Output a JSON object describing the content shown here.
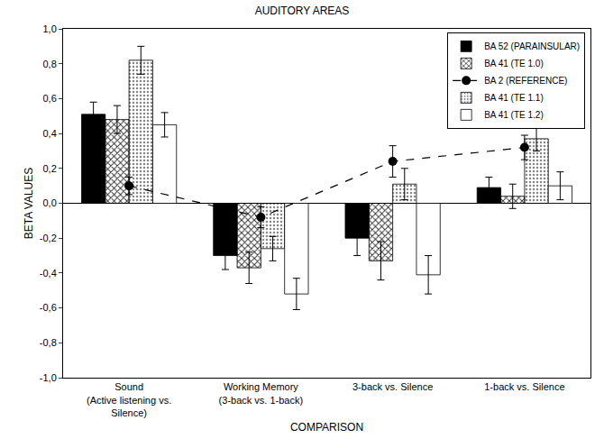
{
  "chart_data": {
    "type": "bar",
    "title": "AUDITORY AREAS",
    "x_label": "COMPARISON",
    "y_label": "BETA VALUES",
    "categories": [
      "Sound\n(Active listening vs.\nSilence)",
      "Working Memory\n(3-back vs. 1-back)",
      "3-back vs. Silence",
      "1-back vs. Silence"
    ],
    "series": [
      {
        "name": "BA 52 (PARAINSULAR)",
        "type": "bar",
        "color": "#000000",
        "marker": "solid",
        "values": [
          0.51,
          -0.3,
          -0.2,
          0.09
        ],
        "errors": [
          0.07,
          0.08,
          0.1,
          0.06
        ]
      },
      {
        "name": "BA 41 (TE 1.0)",
        "type": "bar",
        "color": "#8c8c8c",
        "marker": "hatched",
        "values": [
          0.48,
          -0.37,
          -0.33,
          0.04
        ],
        "errors": [
          0.08,
          0.09,
          0.11,
          0.07
        ]
      },
      {
        "name": "BA 2 (REFERENCE)",
        "type": "line",
        "color": "#000000",
        "marker": "circle",
        "line_style": "dash",
        "values": [
          0.1,
          -0.08,
          0.24,
          0.32
        ],
        "errors": [
          0.05,
          0.06,
          0.09,
          0.07
        ]
      },
      {
        "name": "BA 41 (TE 1.1)",
        "type": "bar",
        "color": "#d4d4d4",
        "marker": "dotted",
        "values": [
          0.82,
          -0.26,
          0.11,
          0.37
        ],
        "errors": [
          0.08,
          0.07,
          0.09,
          0.07
        ]
      },
      {
        "name": "BA 41 (TE 1.2)",
        "type": "bar",
        "color": "#ffffff",
        "marker": "solid",
        "values": [
          0.45,
          -0.52,
          -0.41,
          0.1
        ],
        "errors": [
          0.07,
          0.09,
          0.11,
          0.08
        ]
      }
    ],
    "ylim": [
      -1,
      1
    ],
    "yticks": [
      {
        "value": -1,
        "label": "-1,0"
      },
      {
        "value": -0.8,
        "label": "-0,8"
      },
      {
        "value": -0.6,
        "label": "-0,6"
      },
      {
        "value": -0.4,
        "label": "-0,4"
      },
      {
        "value": -0.2,
        "label": "-0,2"
      },
      {
        "value": 0,
        "label": "0,0"
      },
      {
        "value": 0.2,
        "label": "0,2"
      },
      {
        "value": 0.4,
        "label": "0,4"
      },
      {
        "value": 0.6,
        "label": "0,6"
      },
      {
        "value": 0.8,
        "label": "0,8"
      },
      {
        "value": 1,
        "label": "1,0"
      }
    ],
    "grid": false,
    "legend": "top right"
  }
}
